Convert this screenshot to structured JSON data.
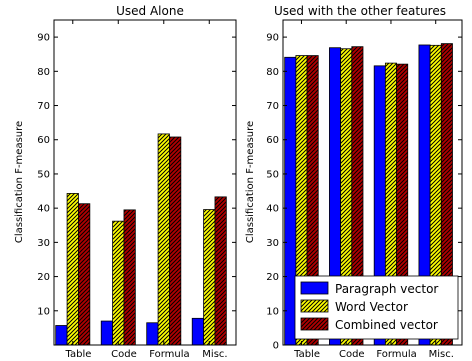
{
  "chart_data": [
    {
      "type": "bar",
      "title": "Used Alone",
      "xlabel": "",
      "ylabel": "Classification F-measure",
      "categories": [
        "Table",
        "Code",
        "Formula",
        "Misc."
      ],
      "ylim": [
        0,
        95
      ],
      "yticks": [
        10,
        20,
        30,
        40,
        50,
        60,
        70,
        80,
        90
      ],
      "series": [
        {
          "name": "Paragraph vector",
          "color": "#0000ff",
          "pattern": "solid",
          "values": [
            5.7,
            7.0,
            6.5,
            7.8
          ]
        },
        {
          "name": "Word Vector",
          "color": "#ffff00",
          "pattern": "hatch",
          "values": [
            44.3,
            36.2,
            61.7,
            39.6
          ]
        },
        {
          "name": "Combined vector",
          "color": "#b20000",
          "pattern": "hatch",
          "values": [
            41.3,
            39.5,
            60.8,
            43.3
          ]
        }
      ],
      "grid": false,
      "legend": "none"
    },
    {
      "type": "bar",
      "title": "Used with the other features",
      "xlabel": "",
      "ylabel": "Classification F-measure",
      "categories": [
        "Table",
        "Code",
        "Formula",
        "Misc."
      ],
      "ylim": [
        0,
        95
      ],
      "yticks": [
        0,
        10,
        20,
        30,
        40,
        50,
        60,
        70,
        80,
        90
      ],
      "series": [
        {
          "name": "Paragraph vector",
          "color": "#0000ff",
          "pattern": "solid",
          "values": [
            84.1,
            86.9,
            81.6,
            87.7
          ]
        },
        {
          "name": "Word Vector",
          "color": "#ffff00",
          "pattern": "hatch",
          "values": [
            84.6,
            86.6,
            82.4,
            87.6
          ]
        },
        {
          "name": "Combined vector",
          "color": "#b20000",
          "pattern": "hatch",
          "values": [
            84.6,
            87.2,
            82.1,
            88.1
          ]
        }
      ],
      "grid": false,
      "legend": "lower-right"
    }
  ]
}
